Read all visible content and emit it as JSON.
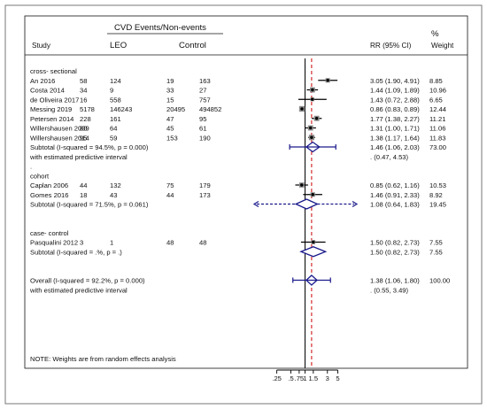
{
  "chart_data": {
    "type": "forest",
    "header": {
      "group_title": "CVD Events/Non-events",
      "study": "Study",
      "leo": "LEO",
      "control": "Control",
      "rr": "RR (95% CI)",
      "pct": "%",
      "weight": "Weight"
    },
    "rows": [
      {
        "kind": "section",
        "label": "cross- sectional"
      },
      {
        "kind": "study",
        "study": "An 2016",
        "leo_events": "58",
        "leo_nonevents": "124",
        "ctrl_events": "19",
        "ctrl_nonevents": "163",
        "rr": 3.05,
        "lo": 1.9,
        "hi": 4.91,
        "ci_text": "3.05 (1.90, 4.91)",
        "weight": "8.85"
      },
      {
        "kind": "study",
        "study": "Costa 2014",
        "leo_events": "34",
        "leo_nonevents": "9",
        "ctrl_events": "33",
        "ctrl_nonevents": "27",
        "rr": 1.44,
        "lo": 1.09,
        "hi": 1.89,
        "ci_text": "1.44 (1.09, 1.89)",
        "weight": "10.96"
      },
      {
        "kind": "study",
        "study": "de Oliveira 2017",
        "leo_events": "16",
        "leo_nonevents": "558",
        "ctrl_events": "15",
        "ctrl_nonevents": "757",
        "rr": 1.43,
        "lo": 0.72,
        "hi": 2.88,
        "ci_text": "1.43 (0.72, 2.88)",
        "weight": "6.65"
      },
      {
        "kind": "study",
        "study": "Messing 2019",
        "leo_events": "5178",
        "leo_nonevents": "146243",
        "ctrl_events": "20495",
        "ctrl_nonevents": "494852",
        "rr": 0.86,
        "lo": 0.83,
        "hi": 0.89,
        "ci_text": "0.86 (0.83, 0.89)",
        "weight": "12.44"
      },
      {
        "kind": "study",
        "study": "Petersen 2014",
        "leo_events": "228",
        "leo_nonevents": "161",
        "ctrl_events": "47",
        "ctrl_nonevents": "95",
        "rr": 1.77,
        "lo": 1.38,
        "hi": 2.27,
        "ci_text": "1.77 (1.38, 2.27)",
        "weight": "11.21"
      },
      {
        "kind": "study",
        "study": "Willershausen 2009",
        "leo_events": "80",
        "leo_nonevents": "64",
        "ctrl_events": "45",
        "ctrl_nonevents": "61",
        "rr": 1.31,
        "lo": 1.0,
        "hi": 1.71,
        "ci_text": "1.31 (1.00, 1.71)",
        "weight": "11.06"
      },
      {
        "kind": "study",
        "study": "Willershausen 2014",
        "leo_events": "95",
        "leo_nonevents": "59",
        "ctrl_events": "153",
        "ctrl_nonevents": "190",
        "rr": 1.38,
        "lo": 1.17,
        "hi": 1.64,
        "ci_text": "1.38 (1.17, 1.64)",
        "weight": "11.83"
      },
      {
        "kind": "subtotal",
        "study": "Subtotal  (I-squared = 94.5%, p = 0.000)",
        "rr": 1.46,
        "lo": 1.06,
        "hi": 2.03,
        "ci_text": "1.46 (1.06, 2.03)",
        "weight": "73.00"
      },
      {
        "kind": "predictive",
        "study": "with estimated predictive interval",
        "lo": 0.47,
        "hi": 4.53,
        "ci_text": ".   (0.47, 4.53)"
      },
      {
        "kind": "dot",
        "label": "."
      },
      {
        "kind": "section",
        "label": "cohort"
      },
      {
        "kind": "study",
        "study": "Caplan 2006",
        "leo_events": "44",
        "leo_nonevents": "132",
        "ctrl_events": "75",
        "ctrl_nonevents": "179",
        "rr": 0.85,
        "lo": 0.62,
        "hi": 1.16,
        "ci_text": "0.85 (0.62, 1.16)",
        "weight": "10.53"
      },
      {
        "kind": "study",
        "study": "Gomes 2016",
        "leo_events": "18",
        "leo_nonevents": "43",
        "ctrl_events": "44",
        "ctrl_nonevents": "173",
        "rr": 1.46,
        "lo": 0.91,
        "hi": 2.33,
        "ci_text": "1.46 (0.91, 2.33)",
        "weight": "8.92"
      },
      {
        "kind": "subtotal",
        "study": "Subtotal  (I-squared = 71.5%, p = 0.061)",
        "rr": 1.08,
        "lo": 0.64,
        "hi": 1.83,
        "ci_text": "1.08 (0.64, 1.83)",
        "weight": "19.45",
        "predictive_arrows": true
      },
      {
        "kind": "blank"
      },
      {
        "kind": "blank"
      },
      {
        "kind": "section",
        "label": "case- control"
      },
      {
        "kind": "study",
        "study": "Pasqualini 2012",
        "leo_events": "3",
        "leo_nonevents": "1",
        "ctrl_events": "48",
        "ctrl_nonevents": "48",
        "rr": 1.5,
        "lo": 0.82,
        "hi": 2.73,
        "ci_text": "1.50 (0.82, 2.73)",
        "weight": "7.55"
      },
      {
        "kind": "subtotal",
        "study": "Subtotal  (I-squared = .%, p = .)",
        "rr": 1.5,
        "lo": 0.82,
        "hi": 2.73,
        "ci_text": "1.50 (0.82, 2.73)",
        "weight": "7.55"
      },
      {
        "kind": "blank"
      },
      {
        "kind": "blank"
      },
      {
        "kind": "overall",
        "study": "Overall  (I-squared = 92.2%, p = 0.000)",
        "rr": 1.38,
        "lo": 1.06,
        "hi": 1.8,
        "ci_text": "1.38 (1.06, 1.80)",
        "weight": "100.00"
      },
      {
        "kind": "predictive",
        "study": "with estimated predictive interval",
        "lo": 0.55,
        "hi": 3.49,
        "ci_text": ".   (0.55, 3.49)"
      }
    ],
    "note": "NOTE: Weights are from random effects analysis",
    "x_scale": "log",
    "x_ticks": [
      0.25,
      0.5,
      0.75,
      1,
      1.5,
      3,
      5
    ],
    "x_tick_labels": [
      ".25",
      ".5",
      ".75",
      "1",
      "1.5",
      "3",
      "5"
    ],
    "null_line": 1,
    "overall_line": 1.38,
    "xlim": [
      0.25,
      5
    ],
    "colors": {
      "diamond": "#1a1a8c",
      "overall_line": "#cc0000",
      "line": "#000000",
      "frame": "#666666"
    }
  }
}
